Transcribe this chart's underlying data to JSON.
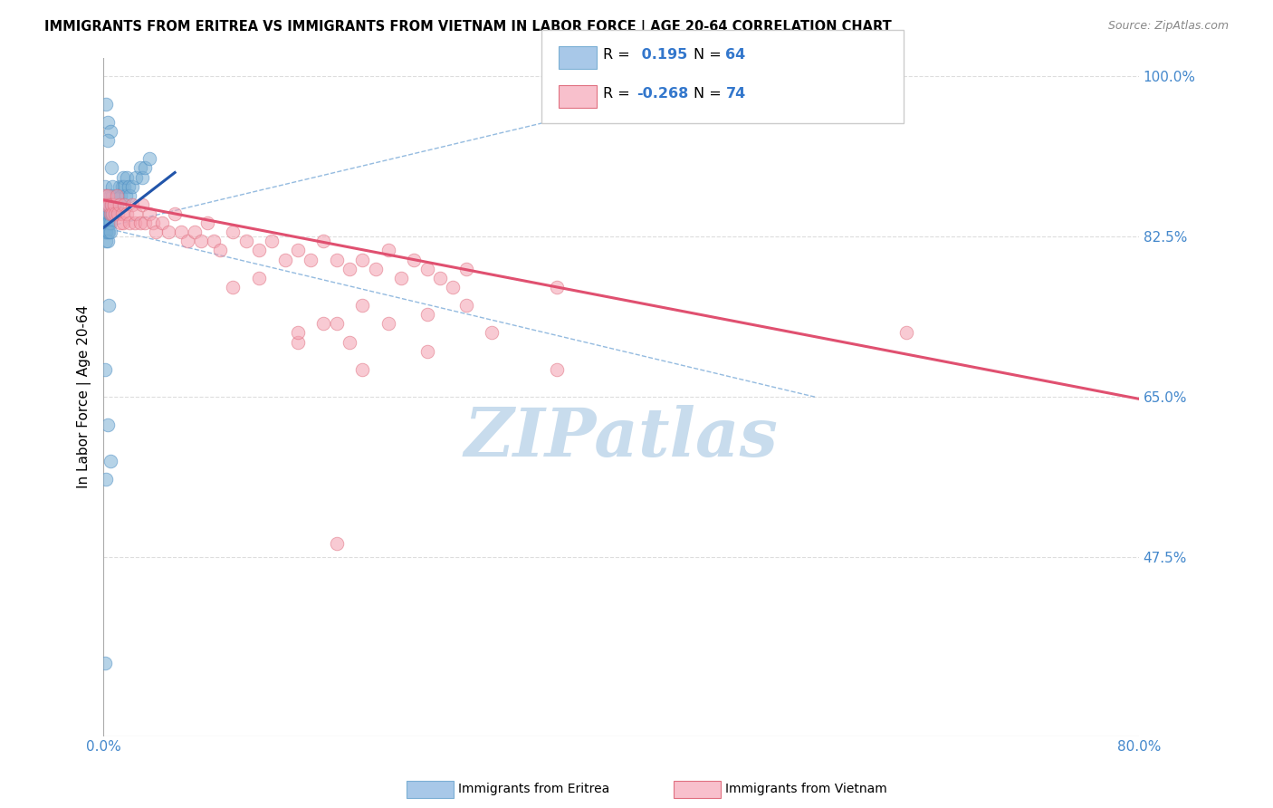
{
  "title": "IMMIGRANTS FROM ERITREA VS IMMIGRANTS FROM VIETNAM IN LABOR FORCE | AGE 20-64 CORRELATION CHART",
  "source": "Source: ZipAtlas.com",
  "ylabel": "In Labor Force | Age 20-64",
  "xlim": [
    0.0,
    0.8
  ],
  "ylim": [
    0.28,
    1.02
  ],
  "ytick_positions": [
    1.0,
    0.825,
    0.65,
    0.475
  ],
  "ytick_labels": [
    "100.0%",
    "82.5%",
    "65.0%",
    "47.5%"
  ],
  "legend_R1": "0.195",
  "legend_N1": "64",
  "legend_R2": "-0.268",
  "legend_N2": "74",
  "watermark": "ZIPatlas",
  "watermark_color": "#c8dced",
  "background_color": "#ffffff",
  "grid_color": "#dddddd",
  "eritrea_color": "#7bafd4",
  "eritrea_edge": "#4d8fc4",
  "vietnam_color": "#f4a0b0",
  "vietnam_edge": "#e07080",
  "eritrea_trend_color": "#2255aa",
  "eritrea_ci_color": "#7aaad8",
  "vietnam_trend_color": "#e05070",
  "text_color_blue": "#3377cc",
  "axis_color": "#4488cc",
  "eritrea_x": [
    0.001,
    0.001,
    0.001,
    0.001,
    0.001,
    0.002,
    0.002,
    0.002,
    0.002,
    0.002,
    0.002,
    0.002,
    0.002,
    0.002,
    0.003,
    0.003,
    0.003,
    0.003,
    0.003,
    0.004,
    0.004,
    0.004,
    0.004,
    0.005,
    0.005,
    0.005,
    0.005,
    0.006,
    0.006,
    0.007,
    0.007,
    0.007,
    0.008,
    0.009,
    0.01,
    0.01,
    0.011,
    0.012,
    0.013,
    0.014,
    0.015,
    0.016,
    0.017,
    0.018,
    0.019,
    0.02,
    0.022,
    0.025,
    0.028,
    0.03,
    0.032,
    0.035,
    0.003,
    0.005,
    0.006,
    0.007,
    0.002,
    0.003,
    0.004,
    0.001,
    0.002,
    0.003,
    0.005,
    0.001
  ],
  "eritrea_y": [
    0.88,
    0.86,
    0.84,
    0.83,
    0.85,
    0.87,
    0.86,
    0.85,
    0.84,
    0.83,
    0.82,
    0.85,
    0.84,
    0.83,
    0.86,
    0.85,
    0.84,
    0.83,
    0.82,
    0.86,
    0.85,
    0.84,
    0.83,
    0.87,
    0.85,
    0.84,
    0.83,
    0.86,
    0.85,
    0.87,
    0.86,
    0.85,
    0.86,
    0.85,
    0.87,
    0.86,
    0.87,
    0.88,
    0.87,
    0.88,
    0.89,
    0.88,
    0.87,
    0.89,
    0.88,
    0.87,
    0.88,
    0.89,
    0.9,
    0.89,
    0.9,
    0.91,
    0.95,
    0.94,
    0.9,
    0.88,
    0.97,
    0.93,
    0.75,
    0.68,
    0.56,
    0.62,
    0.58,
    0.36
  ],
  "vietnam_x": [
    0.001,
    0.002,
    0.003,
    0.004,
    0.005,
    0.006,
    0.007,
    0.008,
    0.009,
    0.01,
    0.011,
    0.012,
    0.013,
    0.014,
    0.015,
    0.016,
    0.018,
    0.02,
    0.022,
    0.024,
    0.025,
    0.028,
    0.03,
    0.032,
    0.035,
    0.038,
    0.04,
    0.045,
    0.05,
    0.055,
    0.06,
    0.065,
    0.07,
    0.075,
    0.08,
    0.085,
    0.09,
    0.1,
    0.11,
    0.12,
    0.13,
    0.14,
    0.15,
    0.16,
    0.17,
    0.18,
    0.19,
    0.2,
    0.21,
    0.22,
    0.23,
    0.24,
    0.25,
    0.26,
    0.27,
    0.28,
    0.15,
    0.2,
    0.25,
    0.3,
    0.2,
    0.25,
    0.17,
    0.19,
    0.62,
    0.1,
    0.35,
    0.28,
    0.22,
    0.12,
    0.15,
    0.18,
    0.35,
    0.18
  ],
  "vietnam_y": [
    0.87,
    0.86,
    0.87,
    0.86,
    0.85,
    0.86,
    0.85,
    0.86,
    0.85,
    0.87,
    0.85,
    0.86,
    0.84,
    0.85,
    0.84,
    0.86,
    0.85,
    0.84,
    0.86,
    0.84,
    0.85,
    0.84,
    0.86,
    0.84,
    0.85,
    0.84,
    0.83,
    0.84,
    0.83,
    0.85,
    0.83,
    0.82,
    0.83,
    0.82,
    0.84,
    0.82,
    0.81,
    0.83,
    0.82,
    0.81,
    0.82,
    0.8,
    0.81,
    0.8,
    0.82,
    0.8,
    0.79,
    0.8,
    0.79,
    0.81,
    0.78,
    0.8,
    0.79,
    0.78,
    0.77,
    0.79,
    0.71,
    0.75,
    0.74,
    0.72,
    0.68,
    0.7,
    0.73,
    0.71,
    0.72,
    0.77,
    0.77,
    0.75,
    0.73,
    0.78,
    0.72,
    0.73,
    0.68,
    0.49
  ]
}
